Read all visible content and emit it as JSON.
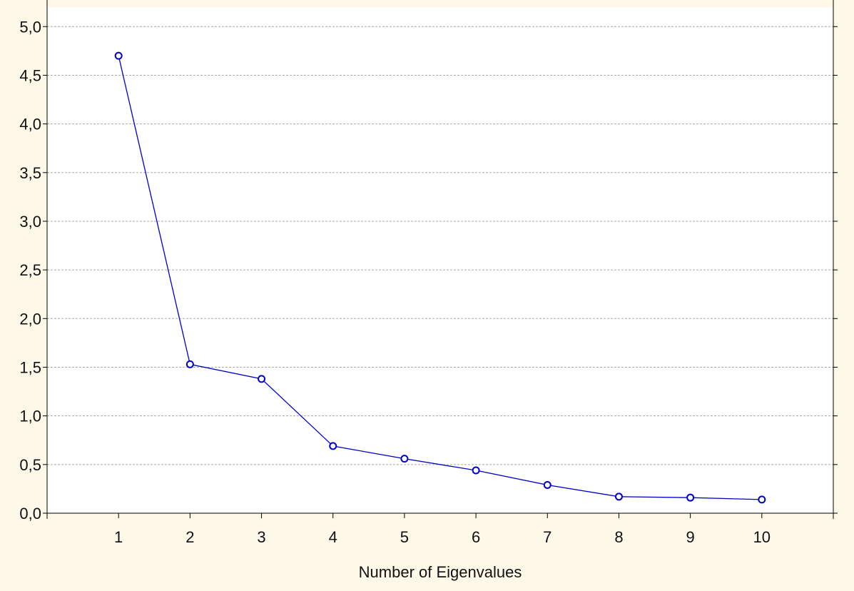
{
  "colors": {
    "page_background": "#fdf8e8",
    "plot_background": "#ffffff",
    "series_line": "#0000cc",
    "gridline": "#a8a8a8",
    "axis": "#000000"
  },
  "chart_data": {
    "type": "line",
    "title": "",
    "xlabel": "Number of Eigenvalues",
    "ylabel": "",
    "x": [
      1,
      2,
      3,
      4,
      5,
      6,
      7,
      8,
      9,
      10
    ],
    "x_tick_labels": [
      "1",
      "2",
      "3",
      "4",
      "5",
      "6",
      "7",
      "8",
      "9",
      "10"
    ],
    "xlim": [
      0,
      11
    ],
    "ylim": [
      0,
      5.2
    ],
    "y_ticks": [
      0,
      0.5,
      1.0,
      1.5,
      2.0,
      2.5,
      3.0,
      3.5,
      4.0,
      4.5,
      5.0
    ],
    "y_tick_labels": [
      "0,0",
      "0,5",
      "1,0",
      "1,5",
      "2,0",
      "2,5",
      "3,0",
      "3,5",
      "4,0",
      "4,5",
      "5,0"
    ],
    "series": [
      {
        "values": [
          4.7,
          1.53,
          1.38,
          0.69,
          0.56,
          0.44,
          0.29,
          0.17,
          0.16,
          0.14
        ],
        "marker": "circle"
      }
    ],
    "grid": "horizontal dashed",
    "legend": "none"
  }
}
